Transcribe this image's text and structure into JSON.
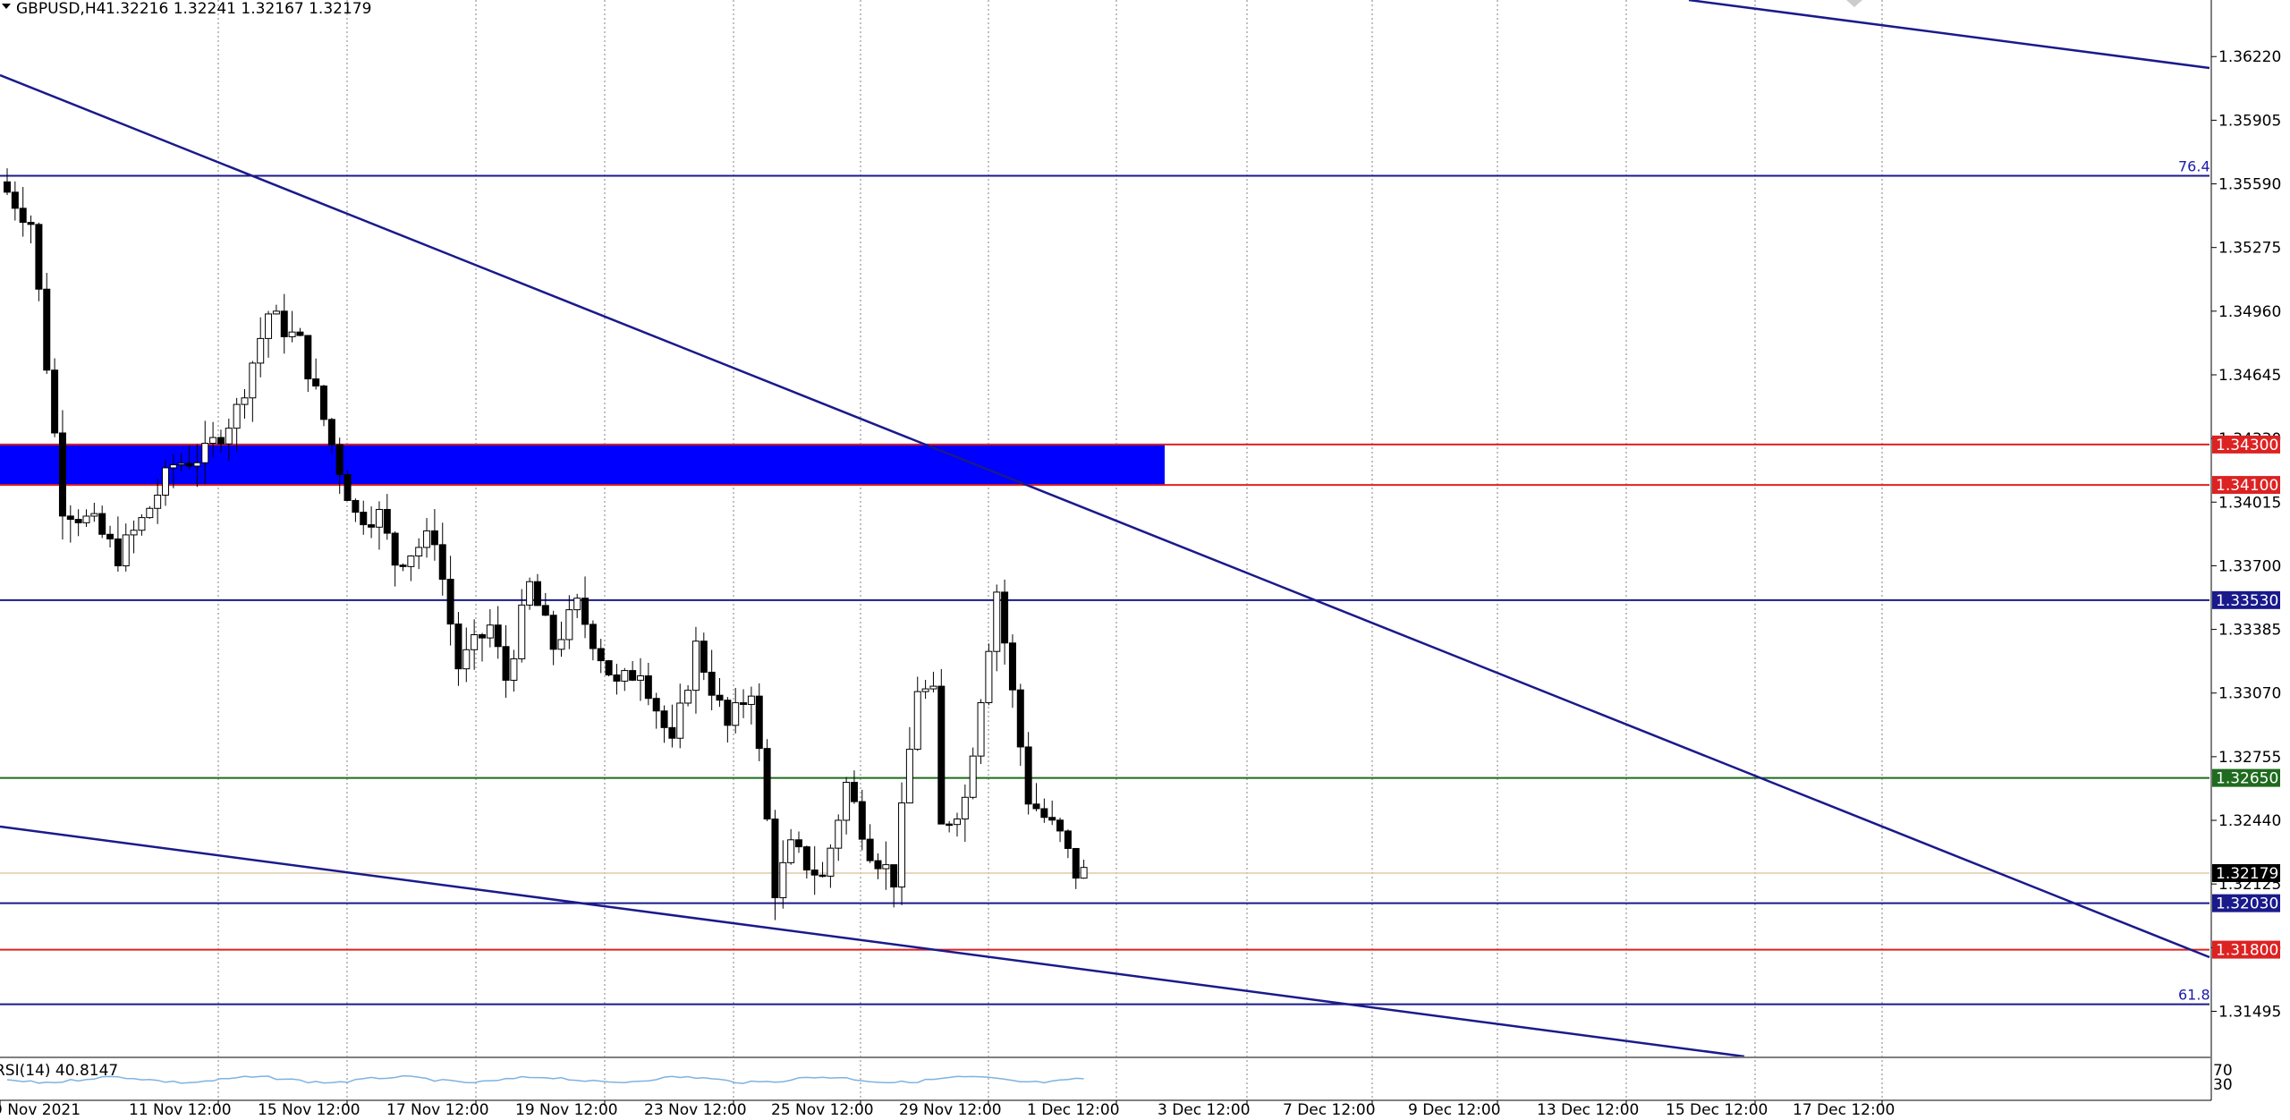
{
  "header": {
    "symbol": "GBPUSD,H4",
    "ohlc": "1.32216 1.32241 1.32167 1.32179"
  },
  "colors": {
    "blue_line": "#1a1a8c",
    "red_line": "#dd2222",
    "green_line": "#1f6b1f",
    "zone": "#0000ff",
    "grid": "#808080",
    "bull": "#ffffff",
    "bear": "#000000",
    "rsi": "#7db3e0"
  },
  "chart_data": {
    "type": "candlestick",
    "timeframe": "H4",
    "ylim": [
      1.3132,
      1.365
    ],
    "y_ticks": [
      "1.36220",
      "1.35905",
      "1.35590",
      "1.35275",
      "1.34960",
      "1.34645",
      "1.34330",
      "1.34015",
      "1.33700",
      "1.33385",
      "1.33070",
      "1.32755",
      "1.32440",
      "1.32125",
      "1.31810",
      "1.31495"
    ],
    "x_ticks": [
      "9 Nov 2021",
      "11 Nov 12:00",
      "15 Nov 12:00",
      "17 Nov 12:00",
      "19 Nov 12:00",
      "23 Nov 12:00",
      "25 Nov 12:00",
      "29 Nov 12:00",
      "1 Dec 12:00",
      "3 Dec 12:00",
      "7 Dec 12:00",
      "9 Dec 12:00",
      "13 Dec 12:00",
      "15 Dec 12:00",
      "17 Dec 12:00"
    ],
    "candle_count": 120,
    "price_path": [
      [
        0,
        1.356
      ],
      [
        4,
        1.354
      ],
      [
        8,
        1.34
      ],
      [
        12,
        1.339
      ],
      [
        15,
        1.3375
      ],
      [
        18,
        1.3392
      ],
      [
        22,
        1.342
      ],
      [
        26,
        1.3425
      ],
      [
        30,
        1.3447
      ],
      [
        34,
        1.3495
      ],
      [
        38,
        1.348
      ],
      [
        42,
        1.343
      ],
      [
        45,
        1.3395
      ],
      [
        48,
        1.3395
      ],
      [
        50,
        1.3372
      ],
      [
        55,
        1.3385
      ],
      [
        58,
        1.332
      ],
      [
        62,
        1.334
      ],
      [
        64,
        1.3314
      ],
      [
        67,
        1.336
      ],
      [
        70,
        1.333
      ],
      [
        73,
        1.335
      ],
      [
        78,
        1.331
      ],
      [
        81,
        1.332
      ],
      [
        85,
        1.328
      ],
      [
        88,
        1.333
      ],
      [
        92,
        1.329
      ],
      [
        95,
        1.331
      ],
      [
        98,
        1.321
      ],
      [
        100,
        1.323
      ],
      [
        104,
        1.3215
      ],
      [
        107,
        1.3262
      ],
      [
        110,
        1.323
      ],
      [
        113,
        1.3215
      ],
      [
        116,
        1.331
      ],
      [
        118,
        1.3305
      ],
      [
        119,
        1.324
      ],
      [
        122,
        1.3255
      ],
      [
        126,
        1.3358
      ],
      [
        130,
        1.3255
      ],
      [
        134,
        1.3236
      ],
      [
        136,
        1.3218
      ]
    ],
    "horizontal_levels": [
      {
        "price": "1.35630",
        "label": "76.4",
        "color": "blue"
      },
      {
        "price": "1.34300",
        "color": "red",
        "tag": "1.34300"
      },
      {
        "price": "1.34100",
        "color": "red",
        "tag": "1.34100"
      },
      {
        "price": "1.33530",
        "color": "blue",
        "tag": "1.33530"
      },
      {
        "price": "1.32650",
        "color": "green",
        "tag": "1.32650"
      },
      {
        "price": "1.32179",
        "color": "tan",
        "tag": "1.32179"
      },
      {
        "price": "1.32030",
        "color": "blue",
        "tag": "1.32030"
      },
      {
        "price": "1.31800",
        "color": "red",
        "tag": "1.31800"
      },
      {
        "price": "1.31530",
        "label": "61.8",
        "color": "blue"
      }
    ],
    "zone": {
      "from": "1.34100",
      "to": "1.34300"
    },
    "trendlines": 3,
    "rsi": {
      "label": "RSI(14) 40.8147",
      "levels": [
        "70",
        "30"
      ]
    }
  }
}
